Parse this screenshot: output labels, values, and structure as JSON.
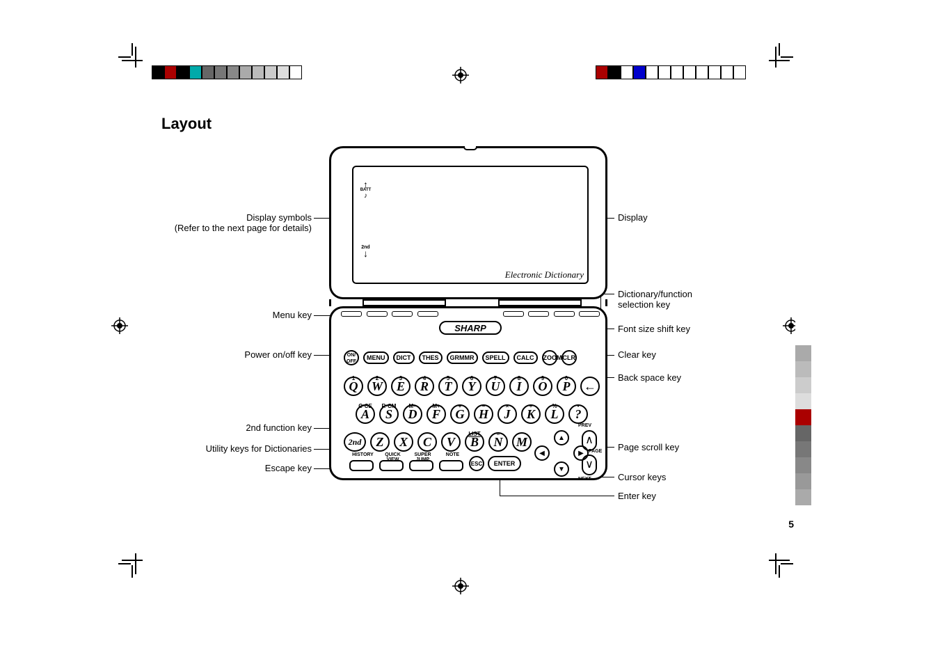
{
  "title": "Layout",
  "page_number": "5",
  "swatches_left": [
    "#000000",
    "#aa0000",
    "#000000",
    "#00aaaa",
    "#666666",
    "#777777",
    "#888888",
    "#aaaaaa",
    "#bbbbbb",
    "#cccccc",
    "#dddddd",
    "#ffffff"
  ],
  "swatches_right": [
    "#ffffff",
    "#ffffff",
    "#ffffff",
    "#ffffff",
    "#ffffff",
    "#ffffff",
    "#ffffff",
    "#ffffff",
    "#0000cc",
    "#ffffff",
    "#000000",
    "#aa0000"
  ],
  "gray_strip": [
    "#ffffff",
    "#ffffff",
    "#aaaaaa",
    "#bbbbbb",
    "#cccccc",
    "#dddddd",
    "#aa0000",
    "#666666",
    "#777777",
    "#888888",
    "#999999",
    "#aaaaaa"
  ],
  "labels_left": {
    "display_symbols": "Display symbols",
    "display_symbols_sub": "(Refer to the next page for details)",
    "menu_key": "Menu key",
    "power_key": "Power on/off key",
    "second_fn": "2nd function key",
    "utility": "Utility keys for Dictionaries",
    "escape": "Escape key"
  },
  "labels_right": {
    "display": "Display",
    "dict_fn": "Dictionary/function",
    "dict_fn2": "selection key",
    "font": "Font size shift key",
    "clear": "Clear key",
    "backspace": "Back space key",
    "page_scroll": "Page scroll key",
    "cursor": "Cursor keys",
    "enter": "Enter key"
  },
  "device": {
    "brand": "SHARP",
    "screen_label": "Electronic  Dictionary",
    "symbols": {
      "batt": "BATT",
      "second": "2nd"
    },
    "fn_row": [
      "MENU",
      "DICT",
      "THES",
      "GRMMR",
      "SPELL",
      "CALC"
    ],
    "on_off": "ON/\nOFF",
    "zoom": "ZOOM",
    "clr": "CLR",
    "row1": [
      {
        "k": "Q",
        "s": "1"
      },
      {
        "k": "W",
        "s": "2"
      },
      {
        "k": "E",
        "s": "3"
      },
      {
        "k": "R",
        "s": "4"
      },
      {
        "k": "T",
        "s": "5"
      },
      {
        "k": "Y",
        "s": "6"
      },
      {
        "k": "U",
        "s": "7"
      },
      {
        "k": "I",
        "s": "8"
      },
      {
        "k": "O",
        "s": "9"
      },
      {
        "k": "P",
        "s": "0"
      }
    ],
    "row2_sup": [
      "C·CE",
      "R·CM",
      "M−",
      "M+",
      "+",
      "−",
      "×",
      "÷",
      "%",
      "•"
    ],
    "row2": [
      "A",
      "S",
      "D",
      "F",
      "G",
      "H",
      "J",
      "K",
      "L",
      "?"
    ],
    "row3_first": "2nd",
    "row3": [
      "Z",
      "X",
      "C",
      "V",
      "B",
      "N",
      "M"
    ],
    "row3_sup_list": "LIST",
    "row3_sup_eq": "=",
    "util": [
      "HISTORY",
      "QUICK\nVIEW",
      "SUPER\nJUMP",
      "NOTE"
    ],
    "esc": "ESC",
    "enter": "ENTER",
    "page": "PAGE",
    "prev": "PREV",
    "next": "NEXT",
    "backspace_glyph": "←"
  }
}
